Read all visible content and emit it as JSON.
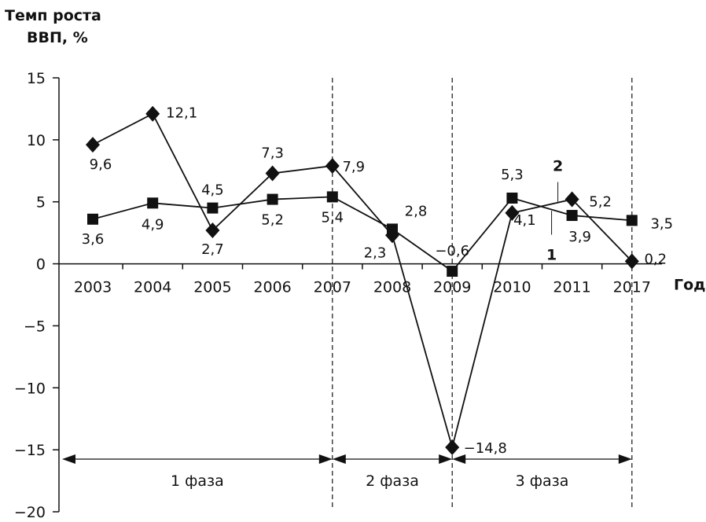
{
  "chart_data": {
    "type": "line",
    "ylabel_lines": [
      "Темп роста",
      "ВВП, %"
    ],
    "xlabel": "Год",
    "categories": [
      "2003",
      "2004",
      "2005",
      "2006",
      "2007",
      "2008",
      "2009",
      "2010",
      "2011",
      "2017"
    ],
    "ylim": [
      -20,
      15
    ],
    "yticks": [
      15,
      10,
      5,
      0,
      -5,
      -10,
      -15,
      -20
    ],
    "ytick_labels": [
      "15",
      "10",
      "5",
      "0",
      "−5",
      "−10",
      "−15",
      "−20"
    ],
    "series": [
      {
        "name": "1",
        "marker": "square",
        "values": [
          3.6,
          4.9,
          4.5,
          5.2,
          5.4,
          2.8,
          -0.6,
          5.3,
          3.9,
          3.5
        ],
        "labels": [
          "3,6",
          "4,9",
          "4,5",
          "5,2",
          "5,4",
          "2,8",
          "−0,6",
          "5,3",
          "3,9",
          "3,5"
        ]
      },
      {
        "name": "2",
        "marker": "diamond",
        "values": [
          9.6,
          12.1,
          2.7,
          7.3,
          7.9,
          2.3,
          -14.8,
          4.1,
          5.2,
          0.2
        ],
        "labels": [
          "9,6",
          "12,1",
          "2,7",
          "7,3",
          "7,9",
          "2,3",
          "−14,8",
          "4,1",
          "5,2",
          "0,2"
        ]
      }
    ],
    "phases": [
      {
        "label": "1 фаза",
        "from": "2003",
        "to": "2007"
      },
      {
        "label": "2 фаза",
        "from": "2007",
        "to": "2009"
      },
      {
        "label": "3 фаза",
        "from": "2009",
        "to": "2017"
      }
    ],
    "phase_dividers": [
      "2007",
      "2009",
      "2017"
    ],
    "series_callouts": [
      {
        "text": "1",
        "series": "1"
      },
      {
        "text": "2",
        "series": "2"
      }
    ],
    "grid": false,
    "legend": "none"
  }
}
